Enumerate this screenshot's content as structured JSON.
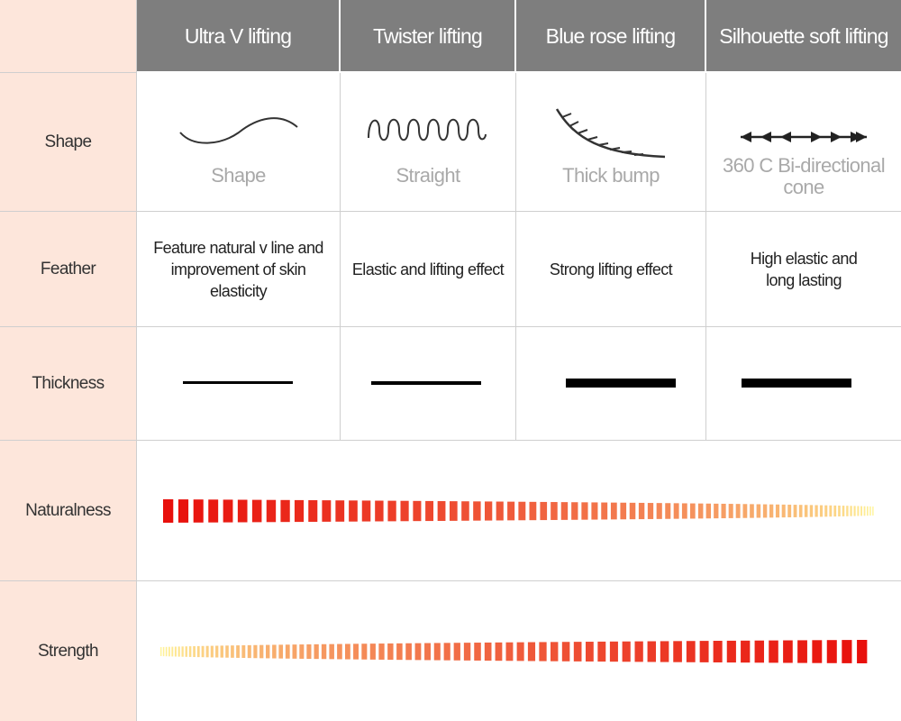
{
  "header": {
    "corner": "",
    "columns": [
      "Ultra V lifting",
      "Twister lifting",
      "Blue rose lifting",
      "Silhouette soft lifting"
    ]
  },
  "rows": {
    "shape": "Shape",
    "feather": "Feather",
    "thickness": "Thickness",
    "naturalness": "Naturalness",
    "strength": "Strength"
  },
  "shape_captions": [
    "Shape",
    "Straight",
    "Thick bump",
    "360 C  Bi-directional cone"
  ],
  "shape_icons": [
    "wave-icon",
    "coil-icon",
    "barbed-curve-icon",
    "bidirectional-arrows-icon"
  ],
  "feather": [
    "Feature natural v line and improvement of skin elasticity",
    "Elastic and lifting effect",
    "Strong lifting effect",
    "High elastic and long lasting"
  ],
  "thickness_levels": [
    1,
    1.33,
    3.33,
    3.33
  ],
  "naturalness_gradient": {
    "from": "#e8100c",
    "to": "#fff59a",
    "direction": "decreasing"
  },
  "strength_gradient": {
    "from": "#fff59a",
    "to": "#e8100c",
    "direction": "increasing"
  },
  "colors": {
    "header_bg": "#7e7e7e",
    "label_bg": "#fde6db",
    "caption": "#a9a9a9"
  }
}
